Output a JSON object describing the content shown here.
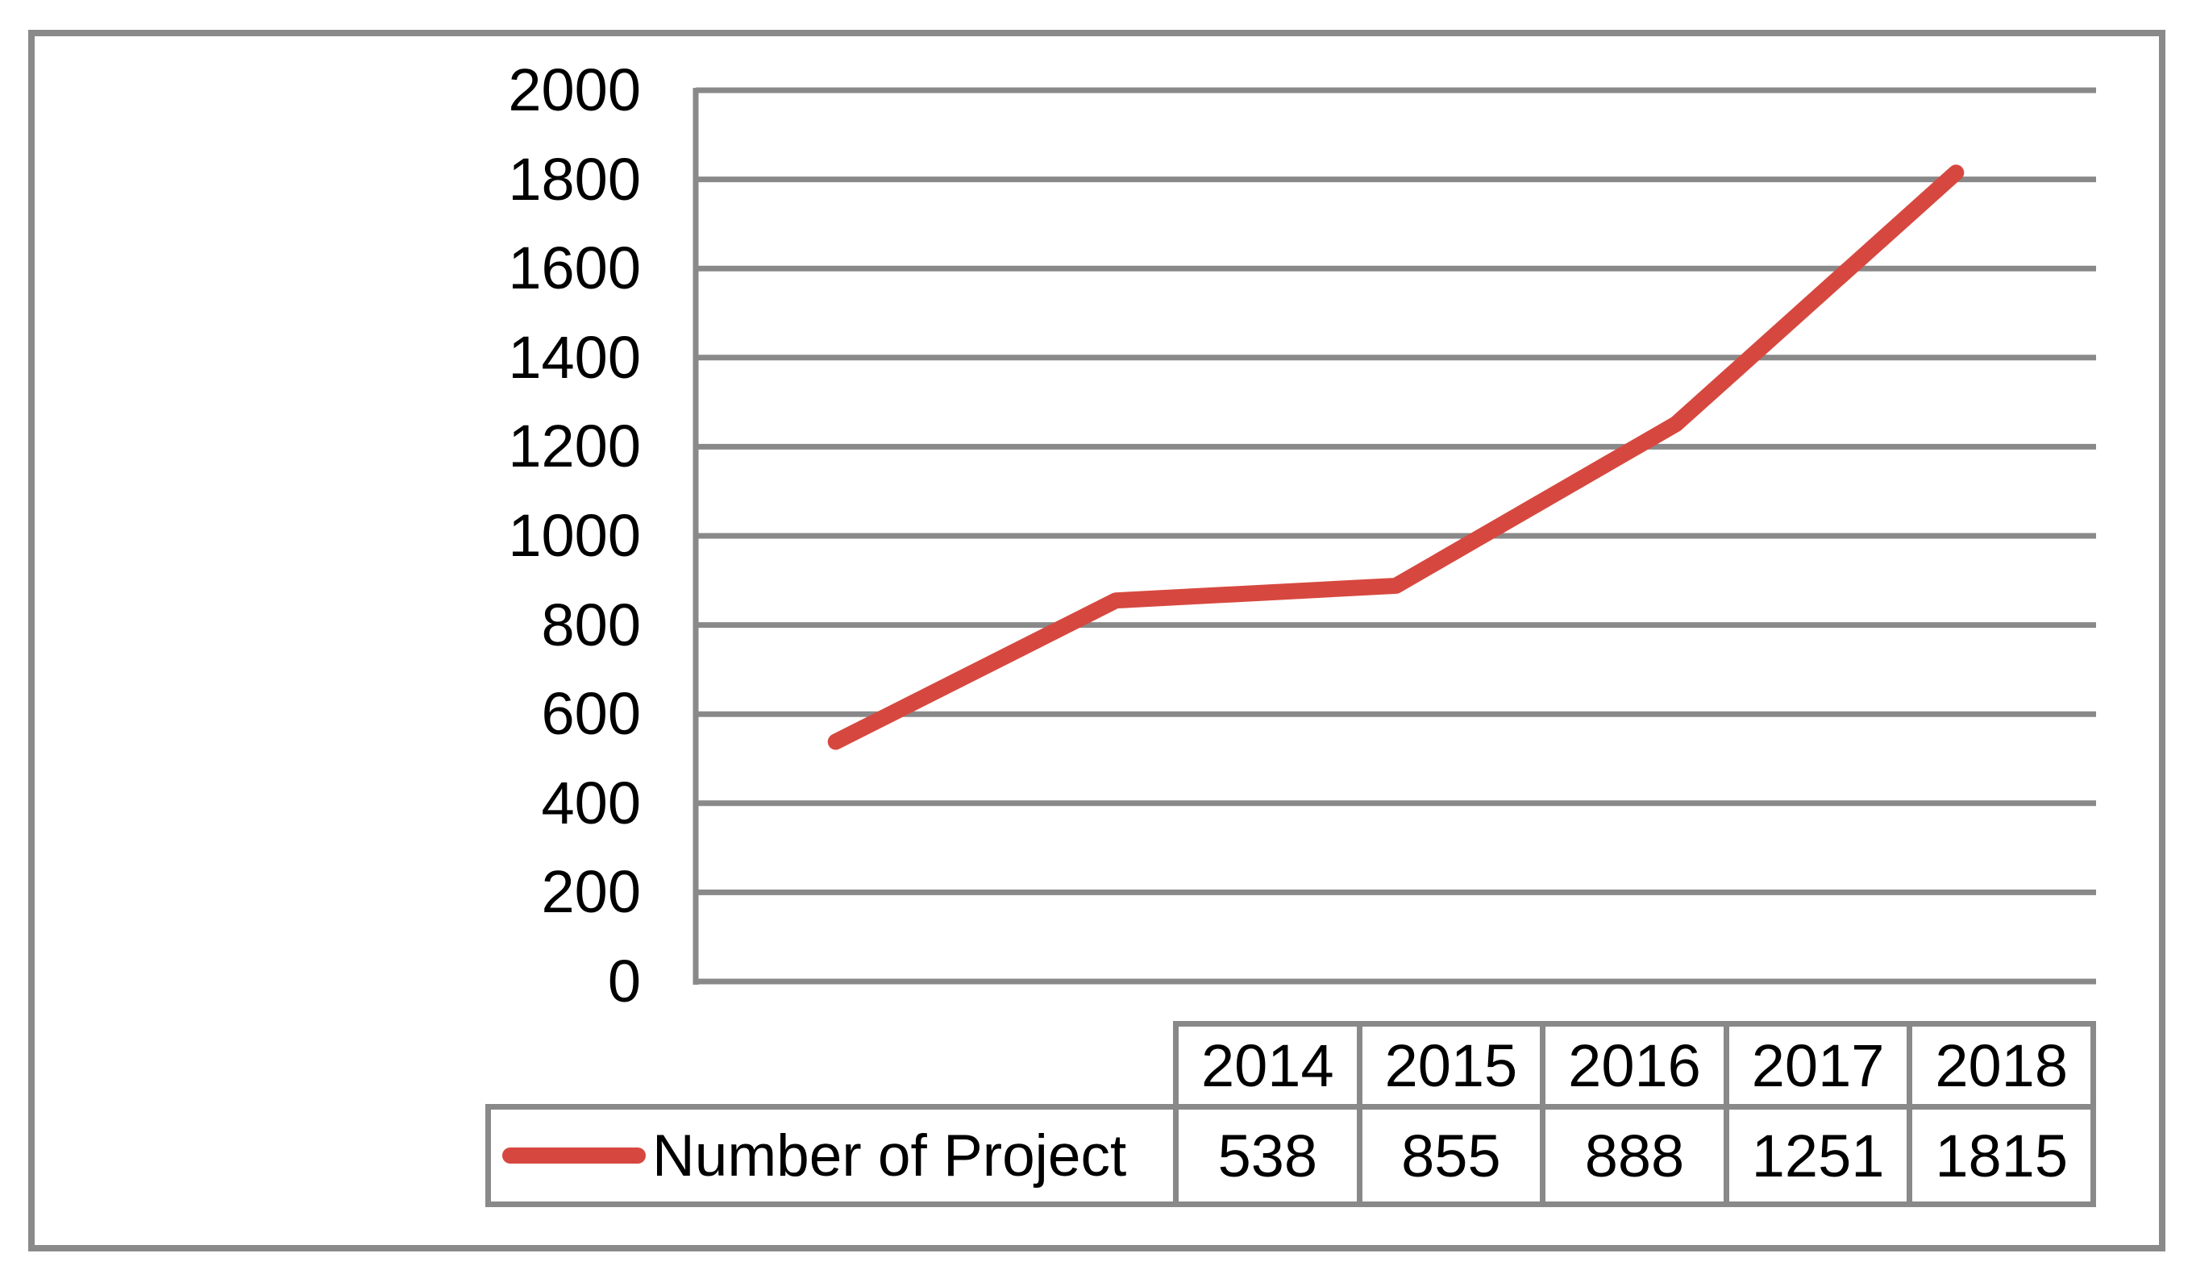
{
  "chart_data": {
    "type": "line",
    "title": "",
    "xlabel": "",
    "ylabel": "",
    "categories": [
      "2014",
      "2015",
      "2016",
      "2017",
      "2018"
    ],
    "series": [
      {
        "name": "Number of Project",
        "values": [
          538,
          855,
          888,
          1251,
          1815
        ]
      }
    ],
    "ylim": [
      0,
      2000
    ],
    "ytick_step": 200,
    "yticks": [
      "2000",
      "1800",
      "1600",
      "1400",
      "1200",
      "1000",
      "800",
      "600",
      "400",
      "200",
      "0"
    ],
    "grid": "horizontal-only",
    "legend_position": "bottom-table-row-header",
    "line_color": "#d6483f",
    "grid_color": "#898989",
    "frame_color": "#8a8a8a",
    "text_color": "#000000"
  },
  "table": {
    "legend_label": "Number of Project",
    "columns": [
      "2014",
      "2015",
      "2016",
      "2017",
      "2018"
    ],
    "values": [
      "538",
      "855",
      "888",
      "1251",
      "1815"
    ]
  }
}
